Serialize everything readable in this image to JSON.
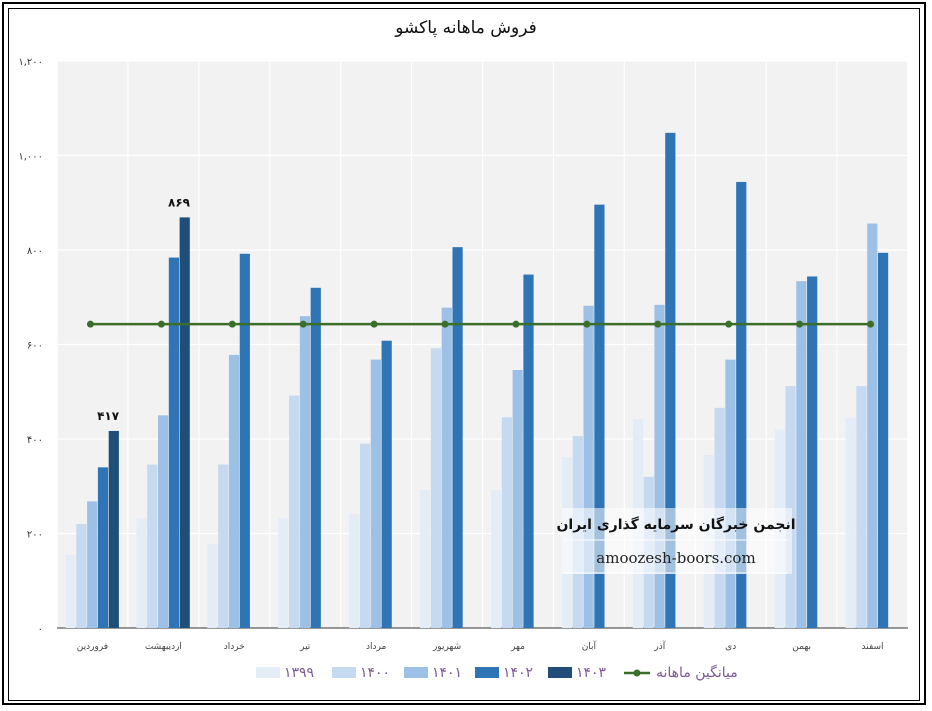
{
  "chart_data": {
    "type": "bar",
    "title": "فروش ماهانه پاکشو",
    "categories": [
      "فروردین",
      "اردیبهشت",
      "خرداد",
      "تیر",
      "مرداد",
      "شهریور",
      "مهر",
      "آبان",
      "آذر",
      "دی",
      "بهمن",
      "اسفند"
    ],
    "series": [
      {
        "name": "۱۳۹۹",
        "color": "#e4ecf6",
        "values": [
          155,
          232,
          178,
          232,
          242,
          292,
          292,
          362,
          442,
          366,
          420,
          445
        ]
      },
      {
        "name": "۱۴۰۰",
        "color": "#c5d9f0",
        "values": [
          220,
          346,
          346,
          492,
          390,
          592,
          446,
          406,
          320,
          466,
          512,
          512
        ]
      },
      {
        "name": "۱۴۰۱",
        "color": "#9dc0e6",
        "values": [
          268,
          450,
          578,
          660,
          568,
          678,
          546,
          682,
          684,
          568,
          734,
          856
        ]
      },
      {
        "name": "۱۴۰۲",
        "color": "#2f75b5",
        "values": [
          340,
          784,
          792,
          720,
          608,
          806,
          748,
          896,
          1048,
          944,
          744,
          794
        ]
      },
      {
        "name": "۱۴۰۳",
        "color": "#1f4e78",
        "values": [
          417,
          869,
          null,
          null,
          null,
          null,
          null,
          null,
          null,
          null,
          null,
          null
        ]
      }
    ],
    "average": {
      "name": "میانگین ماهانه",
      "color": "#3c6e2b",
      "value": 643
    },
    "data_labels": [
      {
        "category": "فروردین",
        "series": "۱۴۰۳",
        "text": "۴۱۷"
      },
      {
        "category": "اردیبهشت",
        "series": "۱۴۰۳",
        "text": "۸۶۹"
      }
    ],
    "y_ticks": [
      {
        "value": 0,
        "label": "۰"
      },
      {
        "value": 200,
        "label": "۲۰۰"
      },
      {
        "value": 400,
        "label": "۴۰۰"
      },
      {
        "value": 600,
        "label": "۶۰۰"
      },
      {
        "value": 800,
        "label": "۸۰۰"
      },
      {
        "value": 1000,
        "label": "۱,۰۰۰"
      },
      {
        "value": 1200,
        "label": "۱,۲۰۰"
      }
    ],
    "ylim": [
      0,
      1200
    ],
    "grid": true,
    "legend_position": "bottom"
  },
  "watermark": {
    "title": "انجمن خبرگان سرمایه گذاری ایران",
    "url": "amoozesh-boors.com"
  }
}
